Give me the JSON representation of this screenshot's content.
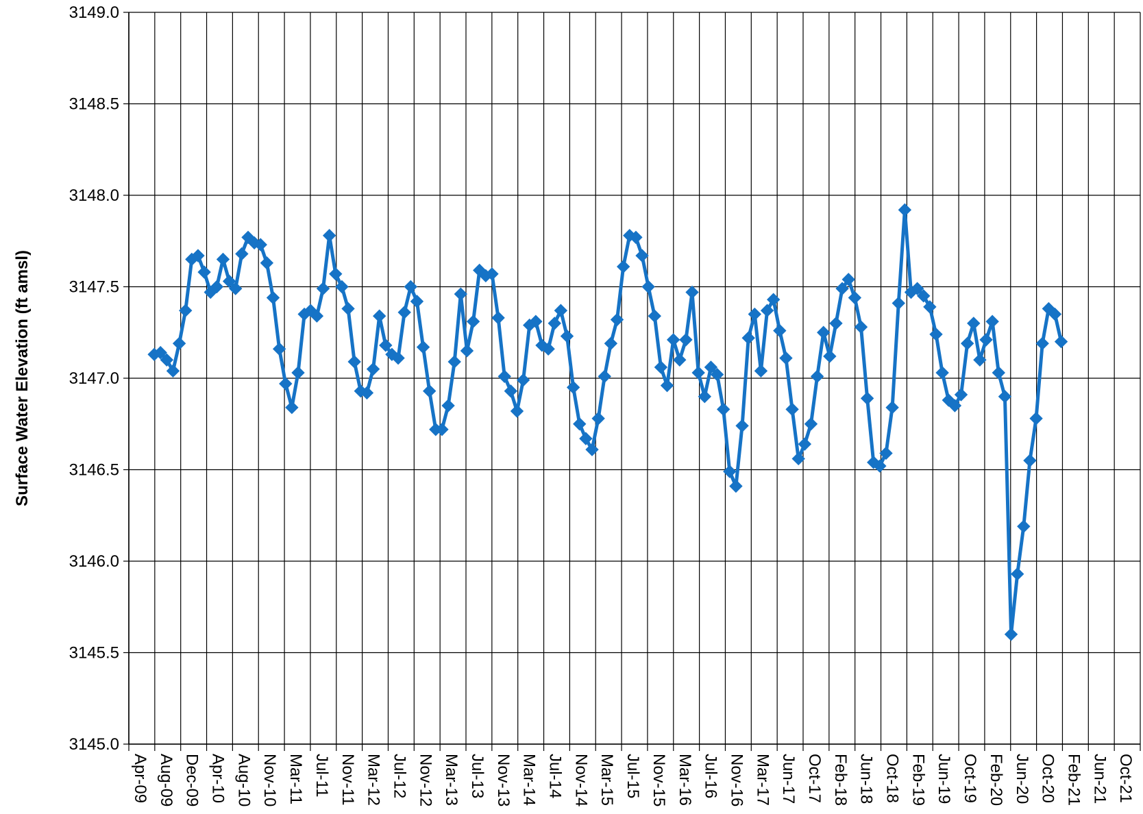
{
  "chart_data": {
    "type": "line",
    "ylabel": "Surface Water Elevation (ft amsl)",
    "xlabel": "",
    "title": "",
    "ylim": [
      3145.0,
      3149.0
    ],
    "y_ticks": [
      "3145.0",
      "3145.5",
      "3146.0",
      "3146.5",
      "3147.0",
      "3147.5",
      "3148.0",
      "3148.5",
      "3149.0"
    ],
    "x_ticks": [
      "Apr-09",
      "Aug-09",
      "Dec-09",
      "Apr-10",
      "Aug-10",
      "Nov-10",
      "Mar-11",
      "Jul-11",
      "Nov-11",
      "Mar-12",
      "Jul-12",
      "Nov-12",
      "Mar-13",
      "Jul-13",
      "Nov-13",
      "Mar-14",
      "Jul-14",
      "Nov-14",
      "Mar-15",
      "Jul-15",
      "Nov-15",
      "Mar-16",
      "Jul-16",
      "Nov-16",
      "Mar-17",
      "Jun-17",
      "Oct-17",
      "Feb-18",
      "Jun-18",
      "Oct-18",
      "Feb-19",
      "Jun-19",
      "Oct-19",
      "Feb-20",
      "Jun-20",
      "Oct-20",
      "Feb-21",
      "Jun-21",
      "Oct-21"
    ],
    "grid": true,
    "legend": "none",
    "series_color": "#1673C6",
    "series": [
      {
        "values": [
          3147.13,
          3147.14,
          3147.1,
          3147.04,
          3147.19,
          3147.37,
          3147.65,
          3147.67,
          3147.58,
          3147.47,
          3147.5,
          3147.65,
          3147.53,
          3147.49,
          3147.68,
          3147.77,
          3147.74,
          3147.73,
          3147.63,
          3147.44,
          3147.16,
          3146.97,
          3146.84,
          3147.03,
          3147.35,
          3147.37,
          3147.34,
          3147.49,
          3147.78,
          3147.57,
          3147.5,
          3147.38,
          3147.09,
          3146.93,
          3146.92,
          3147.05,
          3147.34,
          3147.18,
          3147.13,
          3147.11,
          3147.36,
          3147.5,
          3147.42,
          3147.17,
          3146.93,
          3146.72,
          3146.72,
          3146.85,
          3147.09,
          3147.46,
          3147.15,
          3147.31,
          3147.59,
          3147.56,
          3147.57,
          3147.33,
          3147.01,
          3146.93,
          3146.82,
          3146.99,
          3147.29,
          3147.31,
          3147.18,
          3147.16,
          3147.3,
          3147.37,
          3147.23,
          3146.95,
          3146.75,
          3146.67,
          3146.61,
          3146.78,
          3147.01,
          3147.19,
          3147.32,
          3147.61,
          3147.78,
          3147.77,
          3147.67,
          3147.5,
          3147.34,
          3147.06,
          3146.96,
          3147.21,
          3147.1,
          3147.21,
          3147.47,
          3147.03,
          3146.9,
          3147.06,
          3147.02,
          3146.83,
          3146.49,
          3146.41,
          3146.74,
          3147.22,
          3147.35,
          3147.04,
          3147.37,
          3147.43,
          3147.26,
          3147.11,
          3146.83,
          3146.56,
          3146.64,
          3146.75,
          3147.01,
          3147.25,
          3147.12,
          3147.3,
          3147.49,
          3147.54,
          3147.44,
          3147.28,
          3146.89,
          3146.54,
          3146.52,
          3146.59,
          3146.84,
          3147.41,
          3147.92,
          3147.47,
          3147.49,
          3147.45,
          3147.39,
          3147.24,
          3147.03,
          3146.88,
          3146.85,
          3146.91,
          3147.19,
          3147.3,
          3147.1,
          3147.21,
          3147.31,
          3147.03,
          3146.9,
          3145.6,
          3145.93,
          3146.19,
          3146.55,
          3146.78,
          3147.19,
          3147.38,
          3147.35,
          3147.2
        ]
      }
    ]
  }
}
